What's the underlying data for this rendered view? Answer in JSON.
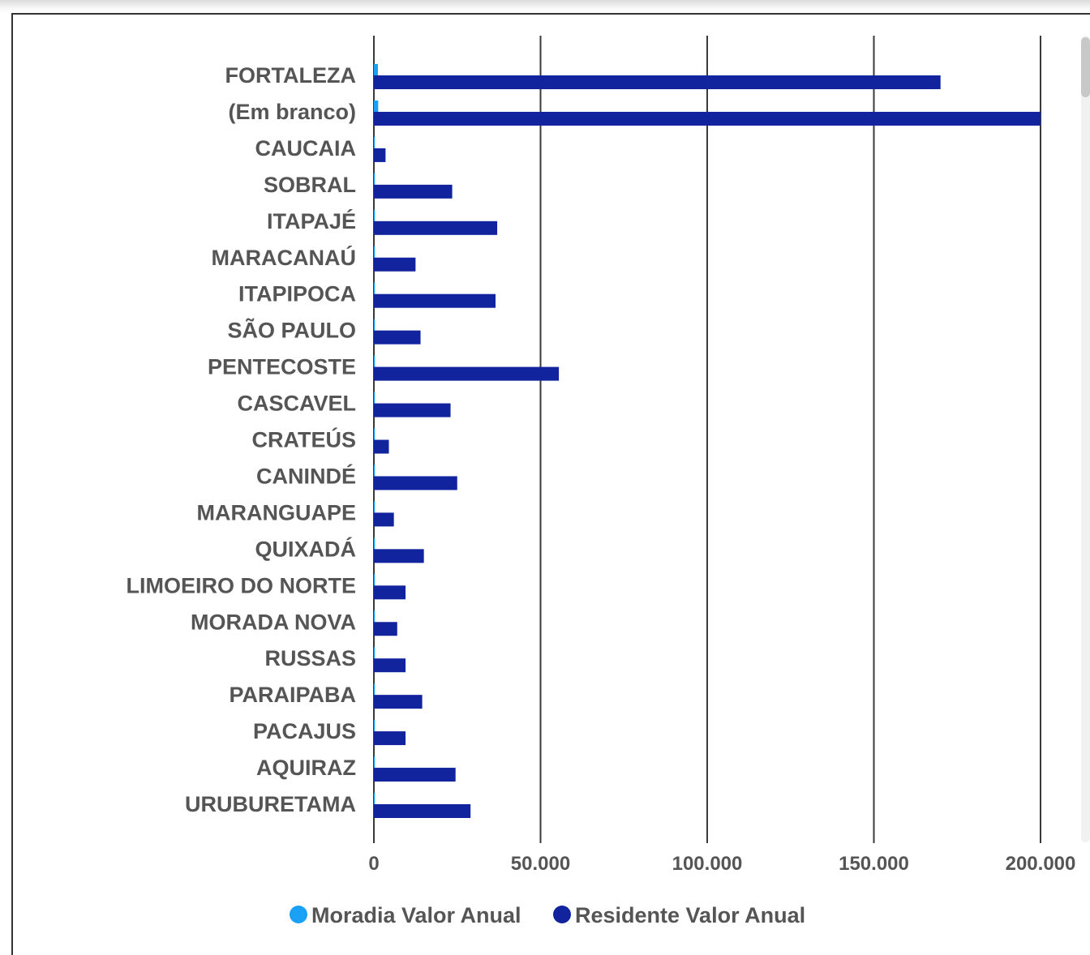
{
  "chart_data": {
    "type": "bar",
    "orientation": "horizontal",
    "categories": [
      "FORTALEZA",
      "(Em branco)",
      "CAUCAIA",
      "SOBRAL",
      "ITAPAJÉ",
      "MARACANAÚ",
      "ITAPIPOCA",
      "SÃO PAULO",
      "PENTECOSTE",
      "CASCAVEL",
      "CRATEÚS",
      "CANINDÉ",
      "MARANGUAPE",
      "QUIXADÁ",
      "LIMOEIRO DO NORTE",
      "MORADA NOVA",
      "RUSSAS",
      "PARAIPABA",
      "PACAJUS",
      "AQUIRAZ",
      "URUBURETAMA"
    ],
    "series": [
      {
        "name": "Moradia Valor Anual",
        "color": "#1aa1f5",
        "values": [
          1200,
          1300,
          300,
          300,
          300,
          300,
          300,
          300,
          300,
          300,
          300,
          300,
          300,
          300,
          300,
          300,
          300,
          300,
          300,
          300,
          300
        ]
      },
      {
        "name": "Residente Valor Anual",
        "color": "#12239e",
        "values": [
          170000,
          200000,
          3500,
          23500,
          37000,
          12500,
          36500,
          14000,
          55500,
          23000,
          4500,
          25000,
          6000,
          15000,
          9500,
          7000,
          9500,
          14500,
          9500,
          24500,
          29000
        ]
      }
    ],
    "xticks": [
      "0",
      "50.000",
      "100.000",
      "150.000",
      "200.000"
    ],
    "xtick_values": [
      0,
      50000,
      100000,
      150000,
      200000
    ],
    "xlim": [
      0,
      200000
    ],
    "grid": true,
    "legend": "bottom-center"
  }
}
